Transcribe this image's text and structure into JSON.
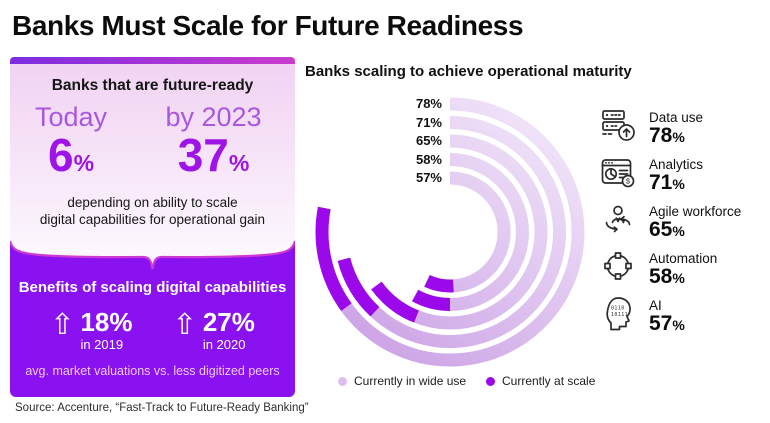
{
  "title": "Banks Must Scale for Future Readiness",
  "source": "Source: Accenture, “Fast-Track to Future-Ready Banking”",
  "misc": {
    "percent_sign": "%"
  },
  "colors": {
    "accent_purple": "#8a12f0",
    "banner_outline": "#cd39d2",
    "stat_value_purple": "#9d13e8",
    "today_label_purple": "#a857e0",
    "topbar_left": "#7d2ce0",
    "topbar_right": "#c93ccc",
    "arc_wide_use_light": "#f4ebfa",
    "arc_wide_use_dark": "#c global"
  },
  "left_panel": {
    "heading": "Banks that are future-ready",
    "today": {
      "label": "Today",
      "value": "6"
    },
    "by_2023": {
      "label": "by 2023",
      "value": "37"
    },
    "caption_lines": [
      "depending on ability to scale",
      "digital capabilities for operational gain"
    ],
    "benefits": {
      "heading": "Benefits of scaling digital capabilities",
      "arrow_glyph": "⇧",
      "stats": [
        {
          "value": "18%",
          "period": "in 2019"
        },
        {
          "value": "27%",
          "period": "in 2020"
        }
      ],
      "footnote": "avg. market valuations vs. less digitized peers"
    }
  },
  "chart": {
    "title": "Banks scaling to achieve operational maturity",
    "legend": [
      {
        "label": "Currently in wide use",
        "color": "#ddbdf0"
      },
      {
        "label": "Currently at scale",
        "color": "#9b09ea"
      }
    ]
  },
  "chart_data": {
    "type": "radial-bar",
    "title": "Banks scaling to achieve operational maturity",
    "categories": [
      "Data use",
      "Analytics",
      "Agile workforce",
      "Automation",
      "AI"
    ],
    "series": [
      {
        "name": "Currently in wide use",
        "values": [
          78,
          71,
          65,
          58,
          57
        ]
      },
      {
        "name": "Currently at scale",
        "values": [
          13,
          9,
          9,
          8,
          8
        ],
        "note": "not labeled in figure; estimated from dark arc-tail lengths"
      }
    ],
    "value_labels": [
      "78%",
      "71%",
      "65%",
      "58%",
      "57%"
    ],
    "layout": {
      "start_angle_deg": 0,
      "direction": "clockwise",
      "max_pct": 100,
      "legend_position": "bottom",
      "grid": false
    }
  },
  "capabilities": [
    {
      "name": "Data use",
      "value": "78"
    },
    {
      "name": "Analytics",
      "value": "71"
    },
    {
      "name": "Agile workforce",
      "value": "65"
    },
    {
      "name": "Automation",
      "value": "58"
    },
    {
      "name": "AI",
      "value": "57"
    }
  ]
}
